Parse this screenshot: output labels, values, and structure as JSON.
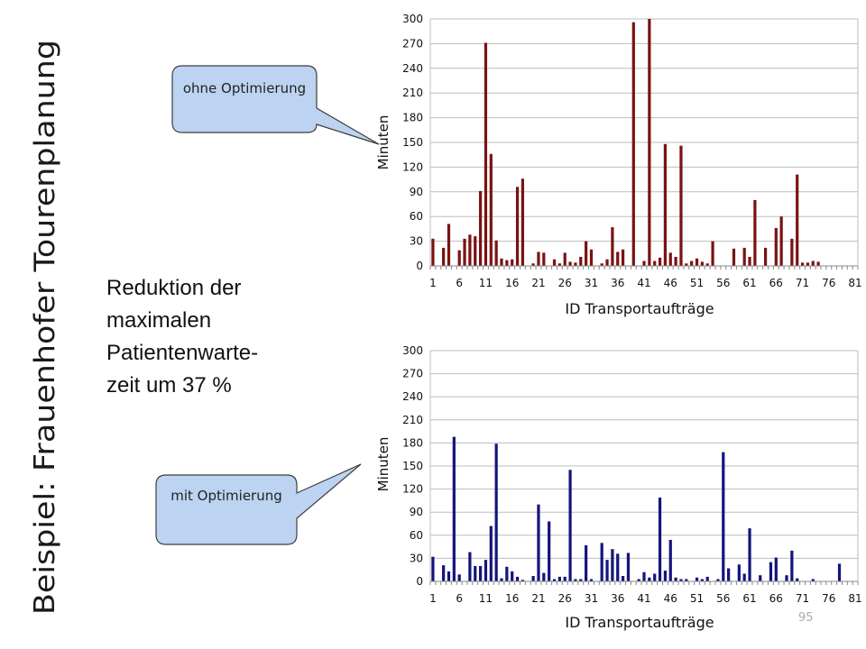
{
  "slide": {
    "title": "Beispiel: Frauenhofer Tourenplanung",
    "callout_top": "ohne Optimierung",
    "callout_bottom": "mit Optimierung",
    "reduction_lines": [
      "Reduktion der",
      "maximalen",
      "Patientenwarte-",
      "zeit um 37 %"
    ],
    "page_number": "95"
  },
  "colors": {
    "series_top": "#7b1212",
    "series_bottom": "#14157d",
    "callout_fill": "#bcd3f1",
    "callout_stroke": "#3d3d3d",
    "grid": "#bdbdbd",
    "axis_text": "#111111"
  },
  "chart_data": [
    {
      "type": "bar",
      "title": "",
      "xlabel": "ID Transportaufträge",
      "ylabel": "Minuten",
      "ylim": [
        0,
        300
      ],
      "yticks": [
        0,
        30,
        60,
        90,
        120,
        150,
        180,
        210,
        240,
        270,
        300
      ],
      "xticks": [
        1,
        6,
        11,
        16,
        21,
        26,
        31,
        36,
        41,
        46,
        51,
        56,
        61,
        66,
        71,
        76,
        81
      ],
      "grid": true,
      "x_start": 1,
      "series": [
        {
          "values": [
            33,
            0,
            22,
            51,
            0,
            19,
            33,
            38,
            36,
            91,
            271,
            136,
            31,
            9,
            7,
            8,
            96,
            106,
            0,
            3,
            17,
            16,
            0,
            8,
            3,
            16,
            5,
            4,
            11,
            30,
            20,
            0,
            3,
            8,
            47,
            17,
            20,
            0,
            296,
            0,
            6,
            300,
            6,
            10,
            148,
            16,
            11,
            146,
            3,
            6,
            9,
            5,
            3,
            30,
            0,
            0,
            0,
            21,
            0,
            22,
            11,
            80,
            0,
            22,
            0,
            46,
            60,
            0,
            33,
            111,
            4,
            4,
            6,
            5,
            0,
            0,
            0,
            0,
            0,
            0,
            0
          ]
        }
      ]
    },
    {
      "type": "bar",
      "title": "",
      "xlabel": "ID Transportaufträge",
      "ylabel": "Minuten",
      "ylim": [
        0,
        300
      ],
      "yticks": [
        0,
        30,
        60,
        90,
        120,
        150,
        180,
        210,
        240,
        270,
        300
      ],
      "xticks": [
        1,
        6,
        11,
        16,
        21,
        26,
        31,
        36,
        41,
        46,
        51,
        56,
        61,
        66,
        71,
        76,
        81
      ],
      "grid": true,
      "x_start": 1,
      "series": [
        {
          "values": [
            32,
            0,
            21,
            13,
            188,
            9,
            0,
            38,
            20,
            20,
            28,
            72,
            179,
            4,
            19,
            13,
            6,
            2,
            0,
            7,
            100,
            11,
            78,
            3,
            6,
            6,
            145,
            3,
            3,
            47,
            3,
            0,
            50,
            28,
            42,
            36,
            7,
            37,
            0,
            3,
            12,
            5,
            10,
            109,
            14,
            54,
            5,
            3,
            3,
            0,
            5,
            3,
            6,
            0,
            3,
            168,
            17,
            0,
            22,
            10,
            69,
            0,
            8,
            0,
            25,
            31,
            0,
            8,
            40,
            4,
            0,
            0,
            3,
            0,
            0,
            0,
            0,
            23,
            0,
            0,
            0
          ]
        }
      ]
    }
  ]
}
